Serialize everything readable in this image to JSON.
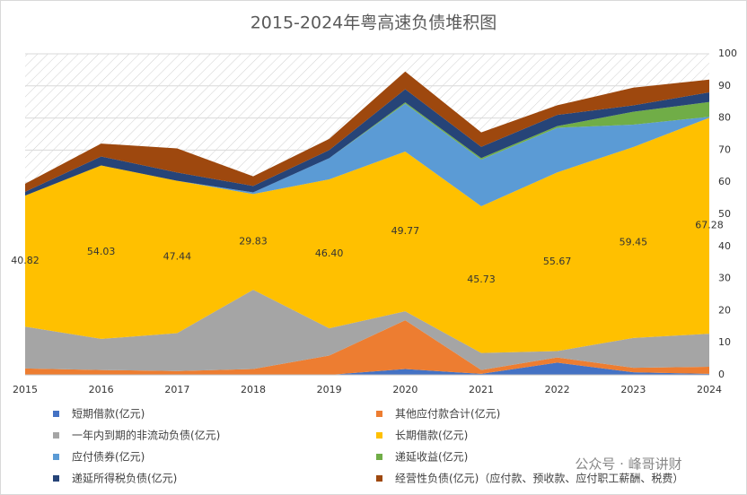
{
  "chart_data": {
    "type": "stacked_area",
    "title": "2015-2024年粤高速负债堆积图",
    "categories": [
      "2015",
      "2016",
      "2017",
      "2018",
      "2019",
      "2020",
      "2021",
      "2022",
      "2023",
      "2024"
    ],
    "ylim": [
      0,
      100
    ],
    "yticks": [
      0,
      10,
      20,
      30,
      40,
      50,
      60,
      70,
      80,
      90,
      100
    ],
    "grid": true,
    "series": [
      {
        "name": "短期借款(亿元)",
        "color": "#4472c4",
        "values": [
          0,
          0,
          0,
          0,
          0,
          1.8,
          0.3,
          3.8,
          0.8,
          0.3
        ]
      },
      {
        "name": "其他应付款合计(亿元)",
        "color": "#ed7d31",
        "values": [
          2,
          1.5,
          1.2,
          1.8,
          6,
          15.2,
          1.2,
          1.6,
          1.4,
          2.2
        ]
      },
      {
        "name": "一年内到期的非流动负债(亿元)",
        "color": "#a5a5a5",
        "values": [
          13,
          9.7,
          11.8,
          24.7,
          8.5,
          2.8,
          5.3,
          2.0,
          9.3,
          10.3
        ]
      },
      {
        "name": "长期借款(亿元)",
        "color": "#ffc000",
        "values": [
          40.82,
          54.03,
          47.44,
          29.83,
          46.4,
          49.77,
          45.73,
          55.67,
          59.45,
          67.28
        ],
        "value_labels": [
          "40.82",
          "54.03",
          "47.44",
          "29.83",
          "46.40",
          "49.77",
          "45.73",
          "55.67",
          "59.45",
          "67.28"
        ]
      },
      {
        "name": "应付债券(亿元)",
        "color": "#5b9bd5",
        "values": [
          0,
          0,
          0,
          0.5,
          6.6,
          14.9,
          14.5,
          13.9,
          7,
          0.3
        ]
      },
      {
        "name": "递延收益(亿元)",
        "color": "#70ad47",
        "values": [
          0,
          0,
          0,
          0,
          0,
          0.4,
          0.5,
          0.5,
          4,
          4.6
        ]
      },
      {
        "name": "递延所得税负债(亿元)",
        "color": "#264478",
        "values": [
          1.2,
          2.8,
          2.6,
          2,
          2.5,
          4.1,
          3.5,
          3.5,
          2,
          3
        ]
      },
      {
        "name": "经营性负债(亿元)（应付款、预收款、应付职工薪酬、税费）",
        "color": "#9e480e",
        "values": [
          2.5,
          4,
          7.5,
          3,
          3.5,
          5.5,
          4.5,
          3,
          5.5,
          4
        ]
      }
    ]
  },
  "watermark": "公众号 · 峰哥讲财"
}
